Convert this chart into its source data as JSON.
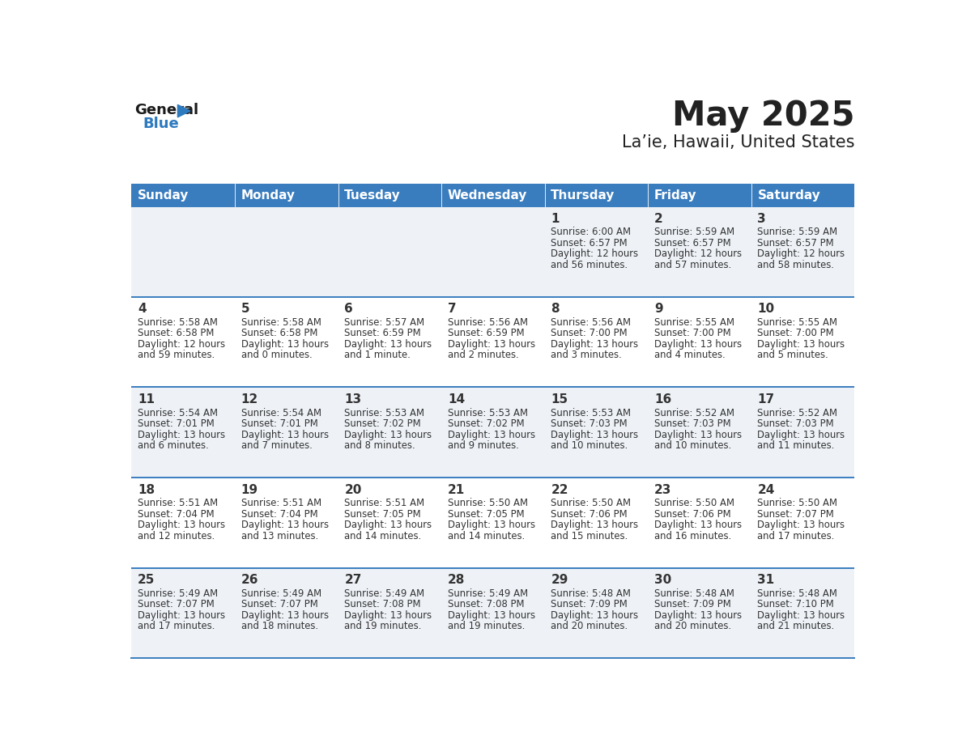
{
  "title": "May 2025",
  "subtitle": "La’ie, Hawaii, United States",
  "days_of_week": [
    "Sunday",
    "Monday",
    "Tuesday",
    "Wednesday",
    "Thursday",
    "Friday",
    "Saturday"
  ],
  "header_bg": "#3a7dbf",
  "header_text": "#ffffff",
  "cell_bg_even": "#eef2f7",
  "cell_bg_odd": "#ffffff",
  "row_border": "#3a7dbf",
  "text_color": "#333333",
  "title_color": "#222222",
  "logo_general_color": "#1a1a1a",
  "logo_blue_color": "#2e7abf",
  "weeks": [
    [
      null,
      null,
      null,
      null,
      {
        "day": 1,
        "sunrise": "6:00 AM",
        "sunset": "6:57 PM",
        "daylight_line1": "Daylight: 12 hours",
        "daylight_line2": "and 56 minutes."
      },
      {
        "day": 2,
        "sunrise": "5:59 AM",
        "sunset": "6:57 PM",
        "daylight_line1": "Daylight: 12 hours",
        "daylight_line2": "and 57 minutes."
      },
      {
        "day": 3,
        "sunrise": "5:59 AM",
        "sunset": "6:57 PM",
        "daylight_line1": "Daylight: 12 hours",
        "daylight_line2": "and 58 minutes."
      }
    ],
    [
      {
        "day": 4,
        "sunrise": "5:58 AM",
        "sunset": "6:58 PM",
        "daylight_line1": "Daylight: 12 hours",
        "daylight_line2": "and 59 minutes."
      },
      {
        "day": 5,
        "sunrise": "5:58 AM",
        "sunset": "6:58 PM",
        "daylight_line1": "Daylight: 13 hours",
        "daylight_line2": "and 0 minutes."
      },
      {
        "day": 6,
        "sunrise": "5:57 AM",
        "sunset": "6:59 PM",
        "daylight_line1": "Daylight: 13 hours",
        "daylight_line2": "and 1 minute."
      },
      {
        "day": 7,
        "sunrise": "5:56 AM",
        "sunset": "6:59 PM",
        "daylight_line1": "Daylight: 13 hours",
        "daylight_line2": "and 2 minutes."
      },
      {
        "day": 8,
        "sunrise": "5:56 AM",
        "sunset": "7:00 PM",
        "daylight_line1": "Daylight: 13 hours",
        "daylight_line2": "and 3 minutes."
      },
      {
        "day": 9,
        "sunrise": "5:55 AM",
        "sunset": "7:00 PM",
        "daylight_line1": "Daylight: 13 hours",
        "daylight_line2": "and 4 minutes."
      },
      {
        "day": 10,
        "sunrise": "5:55 AM",
        "sunset": "7:00 PM",
        "daylight_line1": "Daylight: 13 hours",
        "daylight_line2": "and 5 minutes."
      }
    ],
    [
      {
        "day": 11,
        "sunrise": "5:54 AM",
        "sunset": "7:01 PM",
        "daylight_line1": "Daylight: 13 hours",
        "daylight_line2": "and 6 minutes."
      },
      {
        "day": 12,
        "sunrise": "5:54 AM",
        "sunset": "7:01 PM",
        "daylight_line1": "Daylight: 13 hours",
        "daylight_line2": "and 7 minutes."
      },
      {
        "day": 13,
        "sunrise": "5:53 AM",
        "sunset": "7:02 PM",
        "daylight_line1": "Daylight: 13 hours",
        "daylight_line2": "and 8 minutes."
      },
      {
        "day": 14,
        "sunrise": "5:53 AM",
        "sunset": "7:02 PM",
        "daylight_line1": "Daylight: 13 hours",
        "daylight_line2": "and 9 minutes."
      },
      {
        "day": 15,
        "sunrise": "5:53 AM",
        "sunset": "7:03 PM",
        "daylight_line1": "Daylight: 13 hours",
        "daylight_line2": "and 10 minutes."
      },
      {
        "day": 16,
        "sunrise": "5:52 AM",
        "sunset": "7:03 PM",
        "daylight_line1": "Daylight: 13 hours",
        "daylight_line2": "and 10 minutes."
      },
      {
        "day": 17,
        "sunrise": "5:52 AM",
        "sunset": "7:03 PM",
        "daylight_line1": "Daylight: 13 hours",
        "daylight_line2": "and 11 minutes."
      }
    ],
    [
      {
        "day": 18,
        "sunrise": "5:51 AM",
        "sunset": "7:04 PM",
        "daylight_line1": "Daylight: 13 hours",
        "daylight_line2": "and 12 minutes."
      },
      {
        "day": 19,
        "sunrise": "5:51 AM",
        "sunset": "7:04 PM",
        "daylight_line1": "Daylight: 13 hours",
        "daylight_line2": "and 13 minutes."
      },
      {
        "day": 20,
        "sunrise": "5:51 AM",
        "sunset": "7:05 PM",
        "daylight_line1": "Daylight: 13 hours",
        "daylight_line2": "and 14 minutes."
      },
      {
        "day": 21,
        "sunrise": "5:50 AM",
        "sunset": "7:05 PM",
        "daylight_line1": "Daylight: 13 hours",
        "daylight_line2": "and 14 minutes."
      },
      {
        "day": 22,
        "sunrise": "5:50 AM",
        "sunset": "7:06 PM",
        "daylight_line1": "Daylight: 13 hours",
        "daylight_line2": "and 15 minutes."
      },
      {
        "day": 23,
        "sunrise": "5:50 AM",
        "sunset": "7:06 PM",
        "daylight_line1": "Daylight: 13 hours",
        "daylight_line2": "and 16 minutes."
      },
      {
        "day": 24,
        "sunrise": "5:50 AM",
        "sunset": "7:07 PM",
        "daylight_line1": "Daylight: 13 hours",
        "daylight_line2": "and 17 minutes."
      }
    ],
    [
      {
        "day": 25,
        "sunrise": "5:49 AM",
        "sunset": "7:07 PM",
        "daylight_line1": "Daylight: 13 hours",
        "daylight_line2": "and 17 minutes."
      },
      {
        "day": 26,
        "sunrise": "5:49 AM",
        "sunset": "7:07 PM",
        "daylight_line1": "Daylight: 13 hours",
        "daylight_line2": "and 18 minutes."
      },
      {
        "day": 27,
        "sunrise": "5:49 AM",
        "sunset": "7:08 PM",
        "daylight_line1": "Daylight: 13 hours",
        "daylight_line2": "and 19 minutes."
      },
      {
        "day": 28,
        "sunrise": "5:49 AM",
        "sunset": "7:08 PM",
        "daylight_line1": "Daylight: 13 hours",
        "daylight_line2": "and 19 minutes."
      },
      {
        "day": 29,
        "sunrise": "5:48 AM",
        "sunset": "7:09 PM",
        "daylight_line1": "Daylight: 13 hours",
        "daylight_line2": "and 20 minutes."
      },
      {
        "day": 30,
        "sunrise": "5:48 AM",
        "sunset": "7:09 PM",
        "daylight_line1": "Daylight: 13 hours",
        "daylight_line2": "and 20 minutes."
      },
      {
        "day": 31,
        "sunrise": "5:48 AM",
        "sunset": "7:10 PM",
        "daylight_line1": "Daylight: 13 hours",
        "daylight_line2": "and 21 minutes."
      }
    ]
  ]
}
